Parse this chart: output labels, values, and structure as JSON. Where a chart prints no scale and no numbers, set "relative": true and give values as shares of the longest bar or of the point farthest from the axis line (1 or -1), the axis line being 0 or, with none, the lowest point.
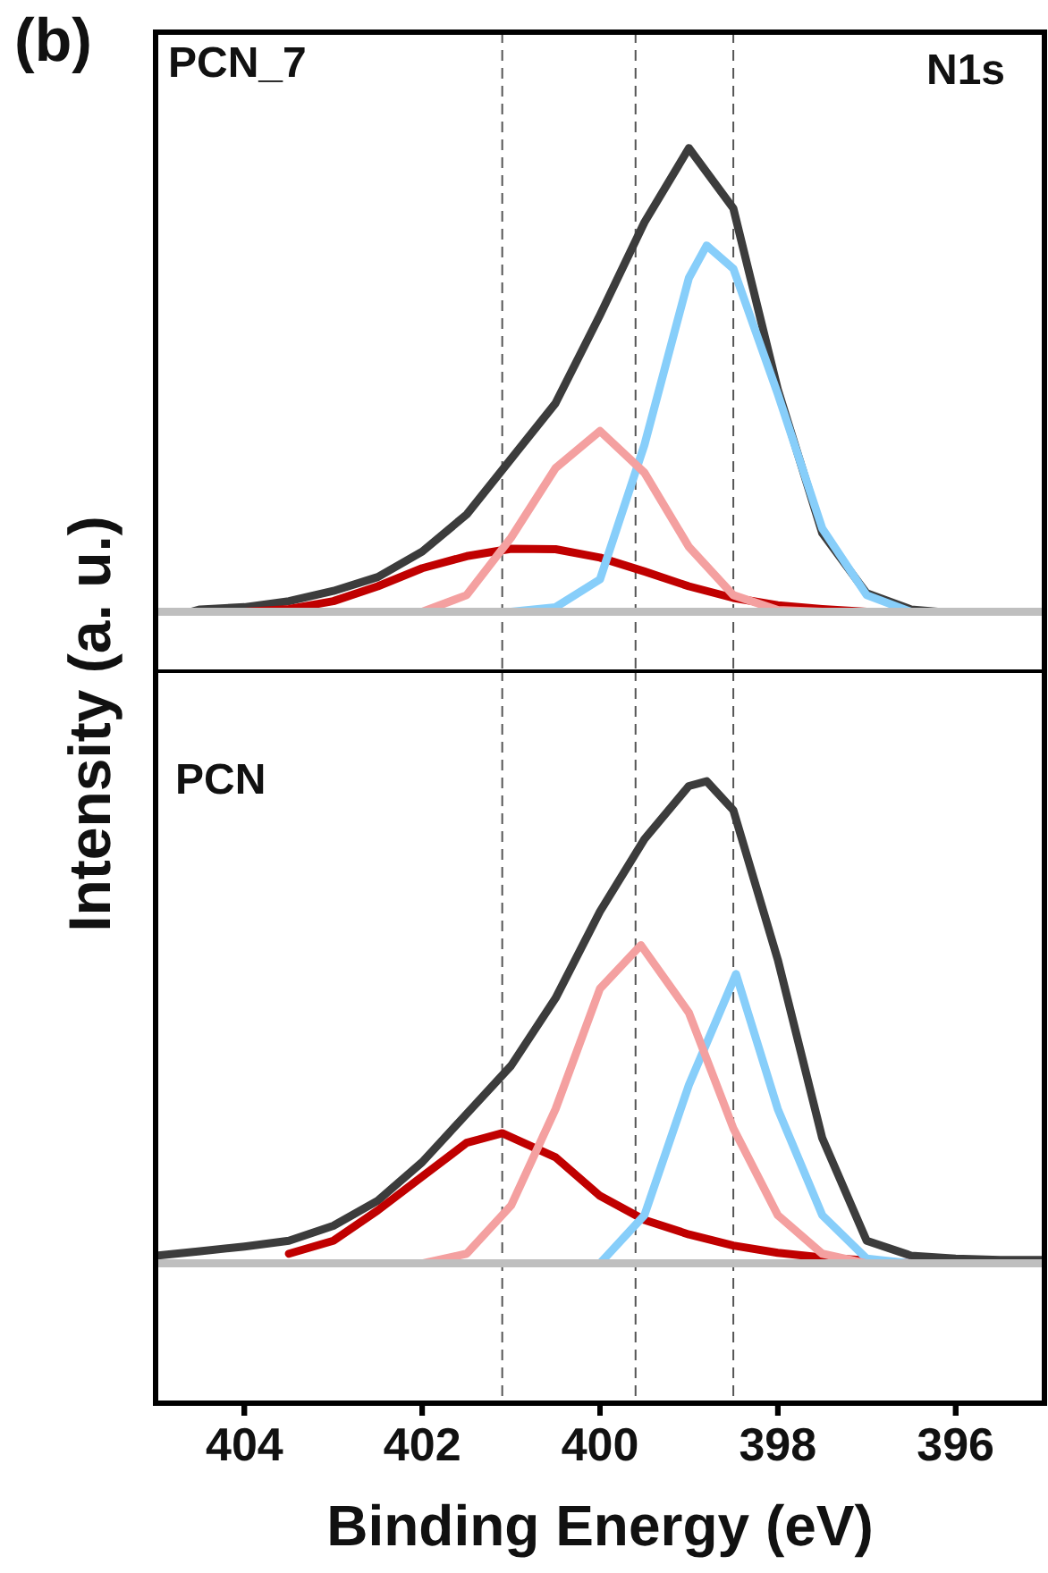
{
  "chart_data": [
    {
      "type": "line",
      "relative": true,
      "ylabel": "Intensity (a. u.)",
      "xlim": [
        405,
        395
      ],
      "tick_labels": false,
      "line_style": "solid",
      "annotations": [
        "(b)",
        "PCN_7",
        "N1s"
      ],
      "ref_lines": [
        {
          "axis": "x",
          "value": 401.1,
          "color": "#555555",
          "line_style": "dashed"
        },
        {
          "axis": "x",
          "value": 399.6,
          "color": "#555555",
          "line_style": "dashed"
        },
        {
          "axis": "x",
          "value": 398.5,
          "color": "#555555",
          "line_style": "dashed"
        }
      ],
      "series": [
        {
          "color": "#bfbfbf",
          "x": [
            405,
            395
          ],
          "values": [
            0,
            0
          ]
        },
        {
          "color": "#f4a0a0",
          "x": [
            402,
            401.5,
            401,
            400.5,
            400,
            399.5,
            399,
            398.5,
            398,
            397.5
          ],
          "values": [
            0,
            0.036,
            0.16,
            0.31,
            0.39,
            0.3,
            0.14,
            0.036,
            0.004,
            0
          ]
        },
        {
          "color": "#87cefa",
          "x": [
            401,
            400.5,
            400,
            399.5,
            399,
            398.8,
            398.5,
            398,
            397.5,
            397,
            396.5
          ],
          "values": [
            0,
            0.01,
            0.07,
            0.36,
            0.72,
            0.79,
            0.74,
            0.47,
            0.18,
            0.036,
            0
          ]
        },
        {
          "color": "#c00000",
          "x": [
            404,
            403.5,
            403,
            402.5,
            402,
            401.5,
            401,
            400.5,
            400,
            399.5,
            399,
            398.5,
            398,
            397.5,
            397
          ],
          "values": [
            0,
            0.006,
            0.023,
            0.055,
            0.094,
            0.12,
            0.136,
            0.135,
            0.117,
            0.087,
            0.055,
            0.03,
            0.014,
            0.006,
            0
          ]
        },
        {
          "color": "#3c3c3c",
          "x": [
            404.6,
            404.5,
            404,
            403.5,
            403,
            402.5,
            402,
            401.5,
            401,
            400.5,
            400,
            399.5,
            399,
            398.5,
            398,
            397.5,
            397,
            396.5,
            396.2
          ],
          "values": [
            0,
            0.005,
            0.01,
            0.023,
            0.045,
            0.075,
            0.13,
            0.21,
            0.33,
            0.45,
            0.64,
            0.84,
            1,
            0.87,
            0.48,
            0.17,
            0.04,
            0.005,
            0
          ]
        }
      ]
    },
    {
      "type": "line",
      "relative": true,
      "xlabel": "Binding Energy (eV)",
      "xlim": [
        405,
        395
      ],
      "xticks": [
        404,
        402,
        400,
        398,
        396
      ],
      "tick_labels": "x",
      "line_style": "solid",
      "annotations": [
        "PCN"
      ],
      "ref_lines": [
        {
          "axis": "x",
          "value": 401.1,
          "color": "#555555",
          "line_style": "dashed"
        },
        {
          "axis": "x",
          "value": 399.6,
          "color": "#555555",
          "line_style": "dashed"
        },
        {
          "axis": "x",
          "value": 398.5,
          "color": "#555555",
          "line_style": "dashed"
        }
      ],
      "series": [
        {
          "color": "#bfbfbf",
          "x": [
            405,
            395
          ],
          "values": [
            0,
            0
          ]
        },
        {
          "color": "#f4a0a0",
          "x": [
            402,
            401.5,
            401,
            400.5,
            400,
            399.54,
            399,
            398.5,
            398,
            397.5,
            397
          ],
          "values": [
            0,
            0.02,
            0.12,
            0.32,
            0.57,
            0.66,
            0.52,
            0.28,
            0.1,
            0.02,
            0
          ]
        },
        {
          "color": "#87cefa",
          "x": [
            400,
            399.5,
            399,
            398.47,
            398,
            397.5,
            397,
            396.5
          ],
          "values": [
            0,
            0.1,
            0.37,
            0.6,
            0.32,
            0.1,
            0.01,
            0
          ]
        },
        {
          "color": "#c00000",
          "x": [
            403.5,
            403,
            402.5,
            402,
            401.5,
            401.1,
            400.5,
            400,
            399.5,
            399,
            398.5,
            398,
            397.5,
            397,
            396.5
          ],
          "values": [
            0.02,
            0.047,
            0.11,
            0.18,
            0.25,
            0.27,
            0.22,
            0.14,
            0.09,
            0.06,
            0.037,
            0.022,
            0.012,
            0.006,
            0
          ]
        },
        {
          "color": "#3c3c3c",
          "x": [
            405,
            404.5,
            404,
            403.5,
            403,
            402.5,
            402,
            401.5,
            401,
            400.5,
            400,
            399.5,
            399,
            398.8,
            398.5,
            398,
            397.5,
            397,
            396.5,
            396,
            395.5,
            395
          ],
          "values": [
            0.016,
            0.025,
            0.035,
            0.047,
            0.078,
            0.13,
            0.21,
            0.31,
            0.41,
            0.55,
            0.73,
            0.88,
            0.99,
            1,
            0.94,
            0.63,
            0.26,
            0.047,
            0.016,
            0.01,
            0.007,
            0.007
          ]
        }
      ]
    }
  ]
}
